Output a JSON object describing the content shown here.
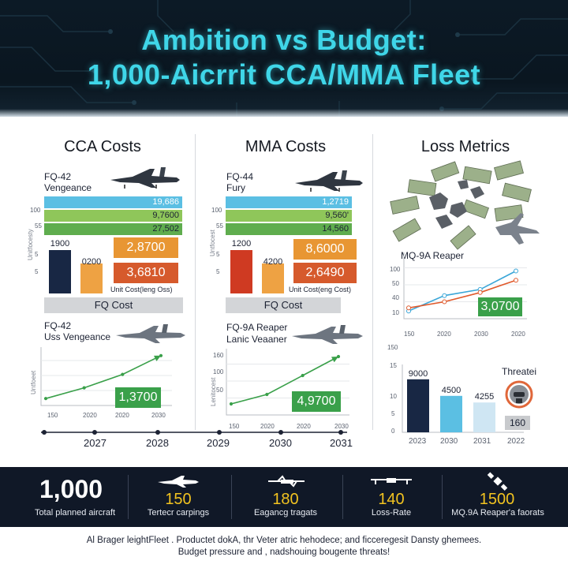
{
  "header": {
    "title_line1": "Ambition vs Budget:",
    "title_line2": "1,000-Aicrrit CCA/MMA Fleet"
  },
  "sections": {
    "cca_title": "CCA Costs",
    "mma_title": "MMA Costs",
    "loss_title": "Loss Metrics"
  },
  "cca": {
    "aircraft_name_line1": "FQ-42",
    "aircraft_name_line2": "Vengeance",
    "y_ticks": [
      "100",
      "55",
      "5",
      "5"
    ],
    "y_axis_name": "Unitfocesty",
    "cost_bars": [
      {
        "label": "19,686",
        "color": "#5bbfe3",
        "fraction": 1.0
      },
      {
        "label": "9,7600",
        "color": "#8fc65a",
        "fraction": 1.0
      },
      {
        "label": "27,502",
        "color": "#5fad4e",
        "fraction": 1.0
      }
    ],
    "unit_bars": [
      {
        "label": "1900",
        "color": "#182744",
        "fraction": 0.78
      },
      {
        "label": "0200",
        "color": "#eea243",
        "fraction": 0.55
      }
    ],
    "box_top": {
      "label": "2,8700",
      "color": "#e89633"
    },
    "box_bottom": {
      "label": "3,6810",
      "color": "#d65a2c"
    },
    "unit_cost_caption": "Unit Cost(leng Oss)",
    "bar_caption": "FQ Cost",
    "trend_name_line1": "FQ-42",
    "trend_name_line2": "Uss Vengeance",
    "trend_y_axis_name": "Untfoeet",
    "trend_x_ticks": [
      "150",
      "2020",
      "2020",
      "2030"
    ],
    "trend_box": "1,3700"
  },
  "mma": {
    "aircraft_name_line1": "FQ-44",
    "aircraft_name_line2": "Fury",
    "y_ticks": [
      "100",
      "55",
      "5",
      "5"
    ],
    "y_axis_name": "Untfocest",
    "cost_bars": [
      {
        "label": "1,2719",
        "color": "#5bbfe3",
        "fraction": 1.0
      },
      {
        "label": "9,560'",
        "color": "#8fc65a",
        "fraction": 1.0
      },
      {
        "label": "14,560",
        "color": "#5fad4e",
        "fraction": 1.0
      }
    ],
    "unit_bars": [
      {
        "label": "1200",
        "color": "#cf3a22",
        "fraction": 0.78
      },
      {
        "label": "4200",
        "color": "#eea243",
        "fraction": 0.55
      }
    ],
    "box_top": {
      "label": "8,6000",
      "color": "#e89633"
    },
    "box_bottom": {
      "label": "2,6490",
      "color": "#d65a2c"
    },
    "unit_cost_caption": "Unit Cost(eng Cost)",
    "bar_caption": "FQ Cost",
    "trend_name_line1": "FQ-9A Reaper",
    "trend_name_line2": "Lanic Veaaner",
    "trend_y_ticks": [
      "160",
      "100",
      "50"
    ],
    "trend_y_axis_name": "Lenitocest",
    "trend_x_ticks": [
      "150",
      "2020",
      "2020",
      "2030"
    ],
    "trend_box": "4,9700"
  },
  "loss": {
    "reaper_label": "MQ-9A Reaper",
    "line_y_ticks": [
      "100",
      "50",
      "40",
      "10"
    ],
    "line_x_ticks": [
      "150",
      "2020",
      "2030",
      "2020"
    ],
    "line_box": "3,0700",
    "bar_y_ticks": [
      "150",
      "15",
      "10",
      "5",
      "0"
    ],
    "bar_x_ticks": [
      "2023",
      "2030",
      "2031",
      "2022"
    ],
    "bars": [
      {
        "label": "9000",
        "value": 16,
        "color": "#182744"
      },
      {
        "label": "4500",
        "value": 11,
        "color": "#5bbfe3"
      },
      {
        "label": "4255",
        "value": 9,
        "color": "#cfe6f3"
      }
    ],
    "threat_label": "Threatei",
    "threat_value": "160"
  },
  "timeline": {
    "years": [
      "2027",
      "2028",
      "2029",
      "2030",
      "2031"
    ]
  },
  "stats": {
    "total_value": "1,000",
    "total_label": "Total planned aircraft",
    "items": [
      {
        "value": "150",
        "label": "Tertecr carpings"
      },
      {
        "value": "180",
        "label": "Eagancg tragats"
      },
      {
        "value": "140",
        "label": "Loss-Rate"
      },
      {
        "value": "1500",
        "label": "MQ.9A Reaper'a faorats"
      }
    ]
  },
  "footer": {
    "line1": "Al Brager leightFleet . Productet dokA, thr Veter atric hehodece; and ficceregesit Dansty ghemees.",
    "line2": "Budget pressure and , nadshouing bougente threats!"
  },
  "chart_data": [
    {
      "type": "bar",
      "title": "CCA Costs",
      "categories": [
        "19,686",
        "9,7600",
        "27,502"
      ],
      "bar_values": [
        1900,
        200
      ],
      "notes": [
        "2,8700",
        "3,6810"
      ],
      "xlabel": "FQ Cost",
      "ylabel": "Unitfocesty"
    },
    {
      "type": "bar",
      "title": "MMA Costs",
      "categories": [
        "1,2719",
        "9,560'",
        "14,560"
      ],
      "bar_values": [
        1200,
        4200
      ],
      "notes": [
        "8,6000",
        "2,6490"
      ],
      "xlabel": "FQ Cost",
      "ylabel": "Untfocest"
    },
    {
      "type": "line",
      "title": "",
      "x": [
        "150",
        "2020",
        "2020",
        "2030"
      ],
      "series": [
        {
          "values": [
            10,
            30,
            55,
            90
          ]
        }
      ],
      "annotation": "1,3700"
    },
    {
      "type": "line",
      "title": "",
      "x": [
        "150",
        "2020",
        "2020",
        "2030"
      ],
      "series": [
        {
          "values": [
            20,
            40,
            80,
            120
          ]
        }
      ],
      "annotation": "4,9700"
    },
    {
      "type": "line",
      "title": "MQ-9A Reaper",
      "x": [
        "150",
        "2020",
        "2030",
        "2020"
      ],
      "series": [
        {
          "values": [
            10,
            35,
            45,
            75
          ],
          "color": "#3aa6d8"
        },
        {
          "values": [
            15,
            25,
            40,
            60
          ],
          "color": "#e05a2c"
        }
      ],
      "annotation": "3,0700",
      "ylim": [
        0,
        100
      ]
    },
    {
      "type": "bar",
      "title": "",
      "categories": [
        "2023",
        "2030",
        "2031"
      ],
      "values": [
        16,
        11,
        9
      ],
      "labels": [
        "9000",
        "4500",
        "4255"
      ],
      "ylim": [
        0,
        20
      ]
    }
  ]
}
